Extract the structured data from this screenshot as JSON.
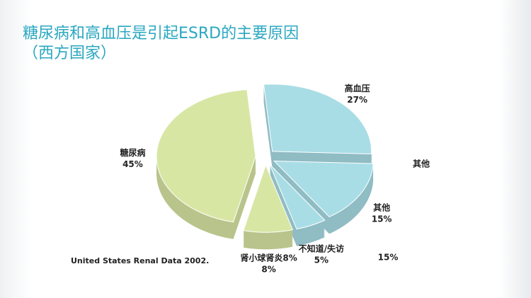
{
  "chart_data": {
    "type": "pie",
    "title": "糖尿病和高血压是引起ESRD的主要原因",
    "subtitle": "（西方国家）",
    "categories": [
      "高血压",
      "其他",
      "不知道/失访",
      "肾小球肾炎8%",
      "糖尿病"
    ],
    "values": [
      27,
      15,
      5,
      8,
      45
    ],
    "value_labels": [
      "27%",
      "15%",
      "5%",
      "8%",
      "45%"
    ],
    "colors": [
      "#a9dde6",
      "#a9dde6",
      "#a9dde6",
      "#d8e6a4",
      "#d8e6a4"
    ],
    "annotations": [
      "其他",
      "15%"
    ],
    "source": "United States Renal Data 2002."
  }
}
